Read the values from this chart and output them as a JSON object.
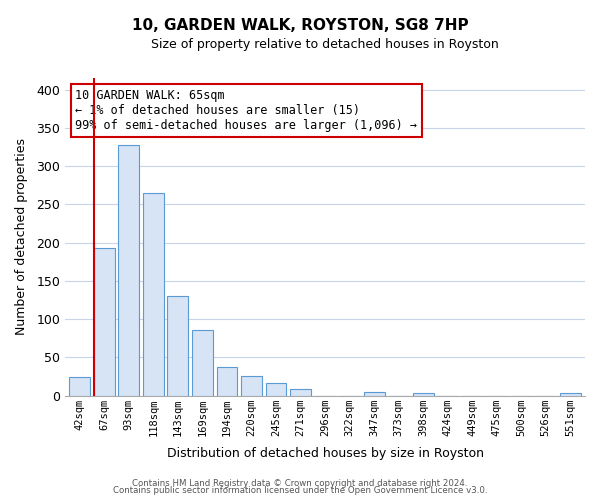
{
  "title": "10, GARDEN WALK, ROYSTON, SG8 7HP",
  "subtitle": "Size of property relative to detached houses in Royston",
  "xlabel": "Distribution of detached houses by size in Royston",
  "ylabel": "Number of detached properties",
  "bar_labels": [
    "42sqm",
    "67sqm",
    "93sqm",
    "118sqm",
    "143sqm",
    "169sqm",
    "194sqm",
    "220sqm",
    "245sqm",
    "271sqm",
    "296sqm",
    "322sqm",
    "347sqm",
    "373sqm",
    "398sqm",
    "424sqm",
    "449sqm",
    "475sqm",
    "500sqm",
    "526sqm",
    "551sqm"
  ],
  "bar_values": [
    24,
    193,
    328,
    265,
    130,
    86,
    38,
    25,
    17,
    8,
    0,
    0,
    5,
    0,
    3,
    0,
    0,
    0,
    0,
    0,
    3
  ],
  "bar_color_face": "#d6e4f5",
  "bar_color_edge": "#5b9bd5",
  "highlight_color": "#cc0000",
  "ylim": [
    0,
    415
  ],
  "yticks": [
    0,
    50,
    100,
    150,
    200,
    250,
    300,
    350,
    400
  ],
  "annotation_text_line1": "10 GARDEN WALK: 65sqm",
  "annotation_text_line2": "← 1% of detached houses are smaller (15)",
  "annotation_text_line3": "99% of semi-detached houses are larger (1,096) →",
  "footer1": "Contains HM Land Registry data © Crown copyright and database right 2024.",
  "footer2": "Contains public sector information licensed under the Open Government Licence v3.0.",
  "grid_color": "#c8d4e8",
  "background_color": "#ffffff"
}
